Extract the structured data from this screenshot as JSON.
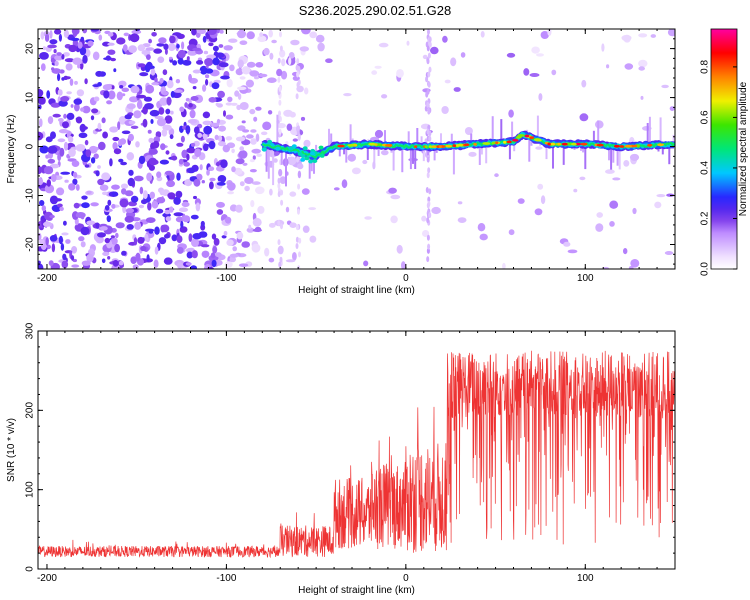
{
  "title": "S236.2025.290.02.51.G28",
  "chart_data": [
    {
      "type": "heatmap",
      "xlabel": "Height of straight line (km)",
      "ylabel": "Frequency (Hz)",
      "xlim": [
        -205,
        150
      ],
      "ylim": [
        -25,
        24
      ],
      "xticks": [
        -200,
        -100,
        0,
        100
      ],
      "yticks": [
        -20,
        -10,
        0,
        10,
        20
      ],
      "colorbar": {
        "label": "Normalized spectral amplitude",
        "range": [
          0,
          0.95
        ],
        "ticks": [
          0.0,
          0.2,
          0.4,
          0.6,
          0.8
        ]
      },
      "ridge": {
        "x_start": -80,
        "x_end": 150,
        "x": [
          -80,
          -60,
          -50,
          -40,
          -20,
          0,
          20,
          40,
          60,
          65,
          80,
          100,
          120,
          150
        ],
        "frequency": [
          0.5,
          -1,
          -2,
          0,
          0.5,
          0,
          0,
          0.5,
          1,
          2.5,
          0.5,
          0.5,
          0,
          0.5
        ]
      }
    },
    {
      "type": "line",
      "xlabel": "Height of straight line (km)",
      "ylabel": "SNR (10 * v/v)",
      "xlim": [
        -205,
        150
      ],
      "ylim": [
        0,
        300
      ],
      "xticks": [
        -200,
        -100,
        0,
        100
      ],
      "yticks": [
        0,
        100,
        200,
        300
      ],
      "series": [
        {
          "color": "#ee3333",
          "segments": [
            {
              "x_range": [
                -205,
                -70
              ],
              "mean": 22,
              "spread": 14
            },
            {
              "x_range": [
                -70,
                -40
              ],
              "mean": 35,
              "spread": 40
            },
            {
              "x_range": [
                -40,
                -20
              ],
              "mean": 70,
              "spread": 90
            },
            {
              "x_range": [
                -20,
                0
              ],
              "mean": 80,
              "spread": 110
            },
            {
              "x_range": [
                0,
                23
              ],
              "mean": 90,
              "spread": 140
            },
            {
              "x_range": [
                23,
                150
              ],
              "mean": 205,
              "spread": 200
            }
          ]
        }
      ]
    }
  ]
}
